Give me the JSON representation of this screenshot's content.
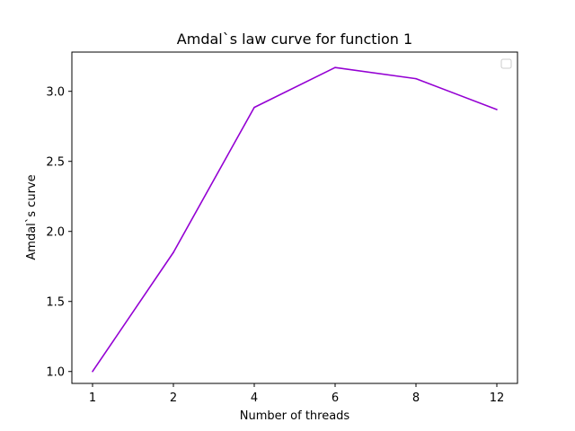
{
  "chart_data": {
    "type": "line",
    "title": "Amdal`s law curve for function 1",
    "xlabel": "Number of threads",
    "ylabel": "Amdal`s curve",
    "categories": [
      "1",
      "2",
      "4",
      "6",
      "8",
      "12"
    ],
    "series": [
      {
        "values": [
          1.0,
          1.85,
          2.885,
          3.17,
          3.09,
          2.87
        ],
        "color": "#9400d3"
      }
    ],
    "ylim": [
      0.915,
      3.28
    ],
    "yticks": [
      "1.0",
      "1.5",
      "2.0",
      "2.5",
      "3.0"
    ],
    "grid": false,
    "legend": {
      "placement": "top-right",
      "entries": []
    }
  }
}
